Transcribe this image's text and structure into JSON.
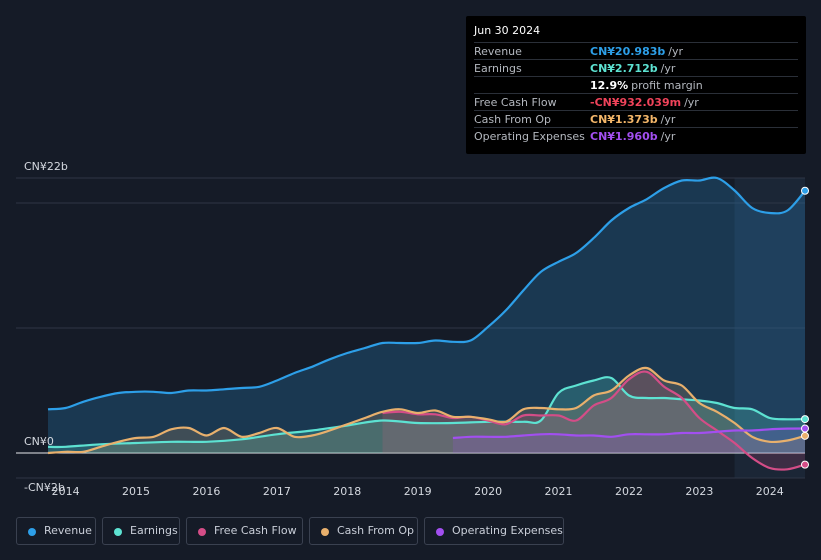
{
  "tooltip": {
    "date": "Jun 30 2024",
    "rows": [
      {
        "label": "Revenue",
        "value": "CN¥20.983b",
        "unit": "/yr",
        "color": "#2d9fe8"
      },
      {
        "label": "Earnings",
        "value": "CN¥2.712b",
        "unit": "/yr",
        "color": "#5de2d2"
      },
      {
        "label": "",
        "value": "12.9%",
        "unit": "profit margin",
        "color": "#ffffff"
      },
      {
        "label": "Free Cash Flow",
        "value": "-CN¥932.039m",
        "unit": "/yr",
        "color": "#f0435a"
      },
      {
        "label": "Cash From Op",
        "value": "CN¥1.373b",
        "unit": "/yr",
        "color": "#f3b669"
      },
      {
        "label": "Operating Expenses",
        "value": "CN¥1.960b",
        "unit": "/yr",
        "color": "#a24ff0"
      }
    ]
  },
  "legend": [
    {
      "label": "Revenue",
      "color": "#2d9fe8"
    },
    {
      "label": "Earnings",
      "color": "#5de2d2"
    },
    {
      "label": "Free Cash Flow",
      "color": "#d44d87"
    },
    {
      "label": "Cash From Op",
      "color": "#e8b06d"
    },
    {
      "label": "Operating Expenses",
      "color": "#a24ff0"
    }
  ],
  "chart_data": {
    "type": "line",
    "title": "",
    "units": "CN¥ billions",
    "y_tick_labels": [
      "CN¥22b",
      "CN¥0",
      "-CN¥2b"
    ],
    "ylim": [
      -2,
      22
    ],
    "xlim": [
      2013.75,
      2024.5
    ],
    "x_ticks": [
      2014,
      2015,
      2016,
      2017,
      2018,
      2019,
      2020,
      2021,
      2022,
      2023,
      2024
    ],
    "x_tick_labels": [
      "2014",
      "2015",
      "2016",
      "2017",
      "2018",
      "2019",
      "2020",
      "2021",
      "2022",
      "2023",
      "2024"
    ],
    "forecast_start": 2023.5,
    "series": [
      {
        "name": "Revenue",
        "color": "#2d9fe8",
        "x": [
          2013.75,
          2014.0,
          2014.25,
          2014.5,
          2014.75,
          2015.0,
          2015.25,
          2015.5,
          2015.75,
          2016.0,
          2016.25,
          2016.5,
          2016.75,
          2017.0,
          2017.25,
          2017.5,
          2017.75,
          2018.0,
          2018.25,
          2018.5,
          2018.75,
          2019.0,
          2019.25,
          2019.5,
          2019.75,
          2020.0,
          2020.25,
          2020.5,
          2020.75,
          2021.0,
          2021.25,
          2021.5,
          2021.75,
          2022.0,
          2022.25,
          2022.5,
          2022.75,
          2023.0,
          2023.25,
          2023.5,
          2023.75,
          2024.0,
          2024.25,
          2024.5
        ],
        "y": [
          3.5,
          3.6,
          4.1,
          4.5,
          4.8,
          4.9,
          4.9,
          4.8,
          5.0,
          5.0,
          5.1,
          5.2,
          5.3,
          5.8,
          6.4,
          6.9,
          7.5,
          8.0,
          8.4,
          8.8,
          8.8,
          8.8,
          9.0,
          8.9,
          9.0,
          10.1,
          11.4,
          13.0,
          14.5,
          15.3,
          16.0,
          17.2,
          18.6,
          19.6,
          20.3,
          21.2,
          21.8,
          21.8,
          22.0,
          21.0,
          19.6,
          19.2,
          19.4,
          20.98
        ]
      },
      {
        "name": "Earnings",
        "color": "#5de2d2",
        "x": [
          2013.75,
          2014.0,
          2014.5,
          2015.0,
          2015.5,
          2016.0,
          2016.5,
          2017.0,
          2017.5,
          2018.0,
          2018.5,
          2019.0,
          2019.5,
          2020.0,
          2020.5,
          2020.75,
          2021.0,
          2021.25,
          2021.5,
          2021.75,
          2022.0,
          2022.25,
          2022.5,
          2022.75,
          2023.0,
          2023.25,
          2023.5,
          2023.75,
          2024.0,
          2024.25,
          2024.5
        ],
        "y": [
          0.5,
          0.5,
          0.7,
          0.8,
          0.9,
          0.9,
          1.1,
          1.5,
          1.8,
          2.2,
          2.6,
          2.4,
          2.4,
          2.5,
          2.5,
          2.6,
          4.8,
          5.4,
          5.8,
          6.0,
          4.6,
          4.4,
          4.4,
          4.3,
          4.2,
          4.0,
          3.6,
          3.5,
          2.8,
          2.7,
          2.712
        ]
      },
      {
        "name": "Free Cash Flow",
        "color": "#d44d87",
        "x": [
          2018.5,
          2018.75,
          2019.0,
          2019.25,
          2019.5,
          2019.75,
          2020.0,
          2020.25,
          2020.5,
          2020.75,
          2021.0,
          2021.25,
          2021.5,
          2021.75,
          2022.0,
          2022.25,
          2022.5,
          2022.75,
          2023.0,
          2023.25,
          2023.5,
          2023.75,
          2024.0,
          2024.25,
          2024.5
        ],
        "y": [
          3.2,
          3.3,
          3.1,
          3.1,
          2.8,
          2.9,
          2.6,
          2.3,
          3.0,
          3.0,
          3.0,
          2.6,
          3.8,
          4.4,
          5.9,
          6.5,
          5.3,
          4.4,
          2.8,
          1.8,
          0.8,
          -0.4,
          -1.2,
          -1.3,
          -0.93
        ]
      },
      {
        "name": "Cash From Op",
        "color": "#e8b06d",
        "x": [
          2013.75,
          2014.0,
          2014.25,
          2014.5,
          2014.75,
          2015.0,
          2015.25,
          2015.5,
          2015.75,
          2016.0,
          2016.25,
          2016.5,
          2016.75,
          2017.0,
          2017.25,
          2017.5,
          2017.75,
          2018.0,
          2018.25,
          2018.5,
          2018.75,
          2019.0,
          2019.25,
          2019.5,
          2019.75,
          2020.0,
          2020.25,
          2020.5,
          2020.75,
          2021.0,
          2021.25,
          2021.5,
          2021.75,
          2022.0,
          2022.25,
          2022.5,
          2022.75,
          2023.0,
          2023.25,
          2023.5,
          2023.75,
          2024.0,
          2024.25,
          2024.5
        ],
        "y": [
          0.0,
          0.1,
          0.1,
          0.5,
          0.9,
          1.2,
          1.3,
          1.9,
          2.0,
          1.4,
          2.0,
          1.3,
          1.6,
          2.0,
          1.3,
          1.4,
          1.8,
          2.3,
          2.8,
          3.3,
          3.5,
          3.2,
          3.4,
          2.9,
          2.9,
          2.7,
          2.5,
          3.5,
          3.6,
          3.5,
          3.6,
          4.6,
          5.0,
          6.2,
          6.8,
          5.8,
          5.4,
          4.0,
          3.3,
          2.4,
          1.3,
          0.9,
          1.0,
          1.373
        ]
      },
      {
        "name": "Operating Expenses",
        "color": "#a24ff0",
        "x": [
          2019.5,
          2019.75,
          2020.0,
          2020.25,
          2020.5,
          2020.75,
          2021.0,
          2021.25,
          2021.5,
          2021.75,
          2022.0,
          2022.25,
          2022.5,
          2022.75,
          2023.0,
          2023.25,
          2023.5,
          2023.75,
          2024.0,
          2024.25,
          2024.5
        ],
        "y": [
          1.2,
          1.3,
          1.3,
          1.3,
          1.4,
          1.5,
          1.5,
          1.4,
          1.4,
          1.3,
          1.5,
          1.5,
          1.5,
          1.6,
          1.6,
          1.7,
          1.8,
          1.8,
          1.9,
          1.95,
          1.96
        ]
      }
    ]
  }
}
